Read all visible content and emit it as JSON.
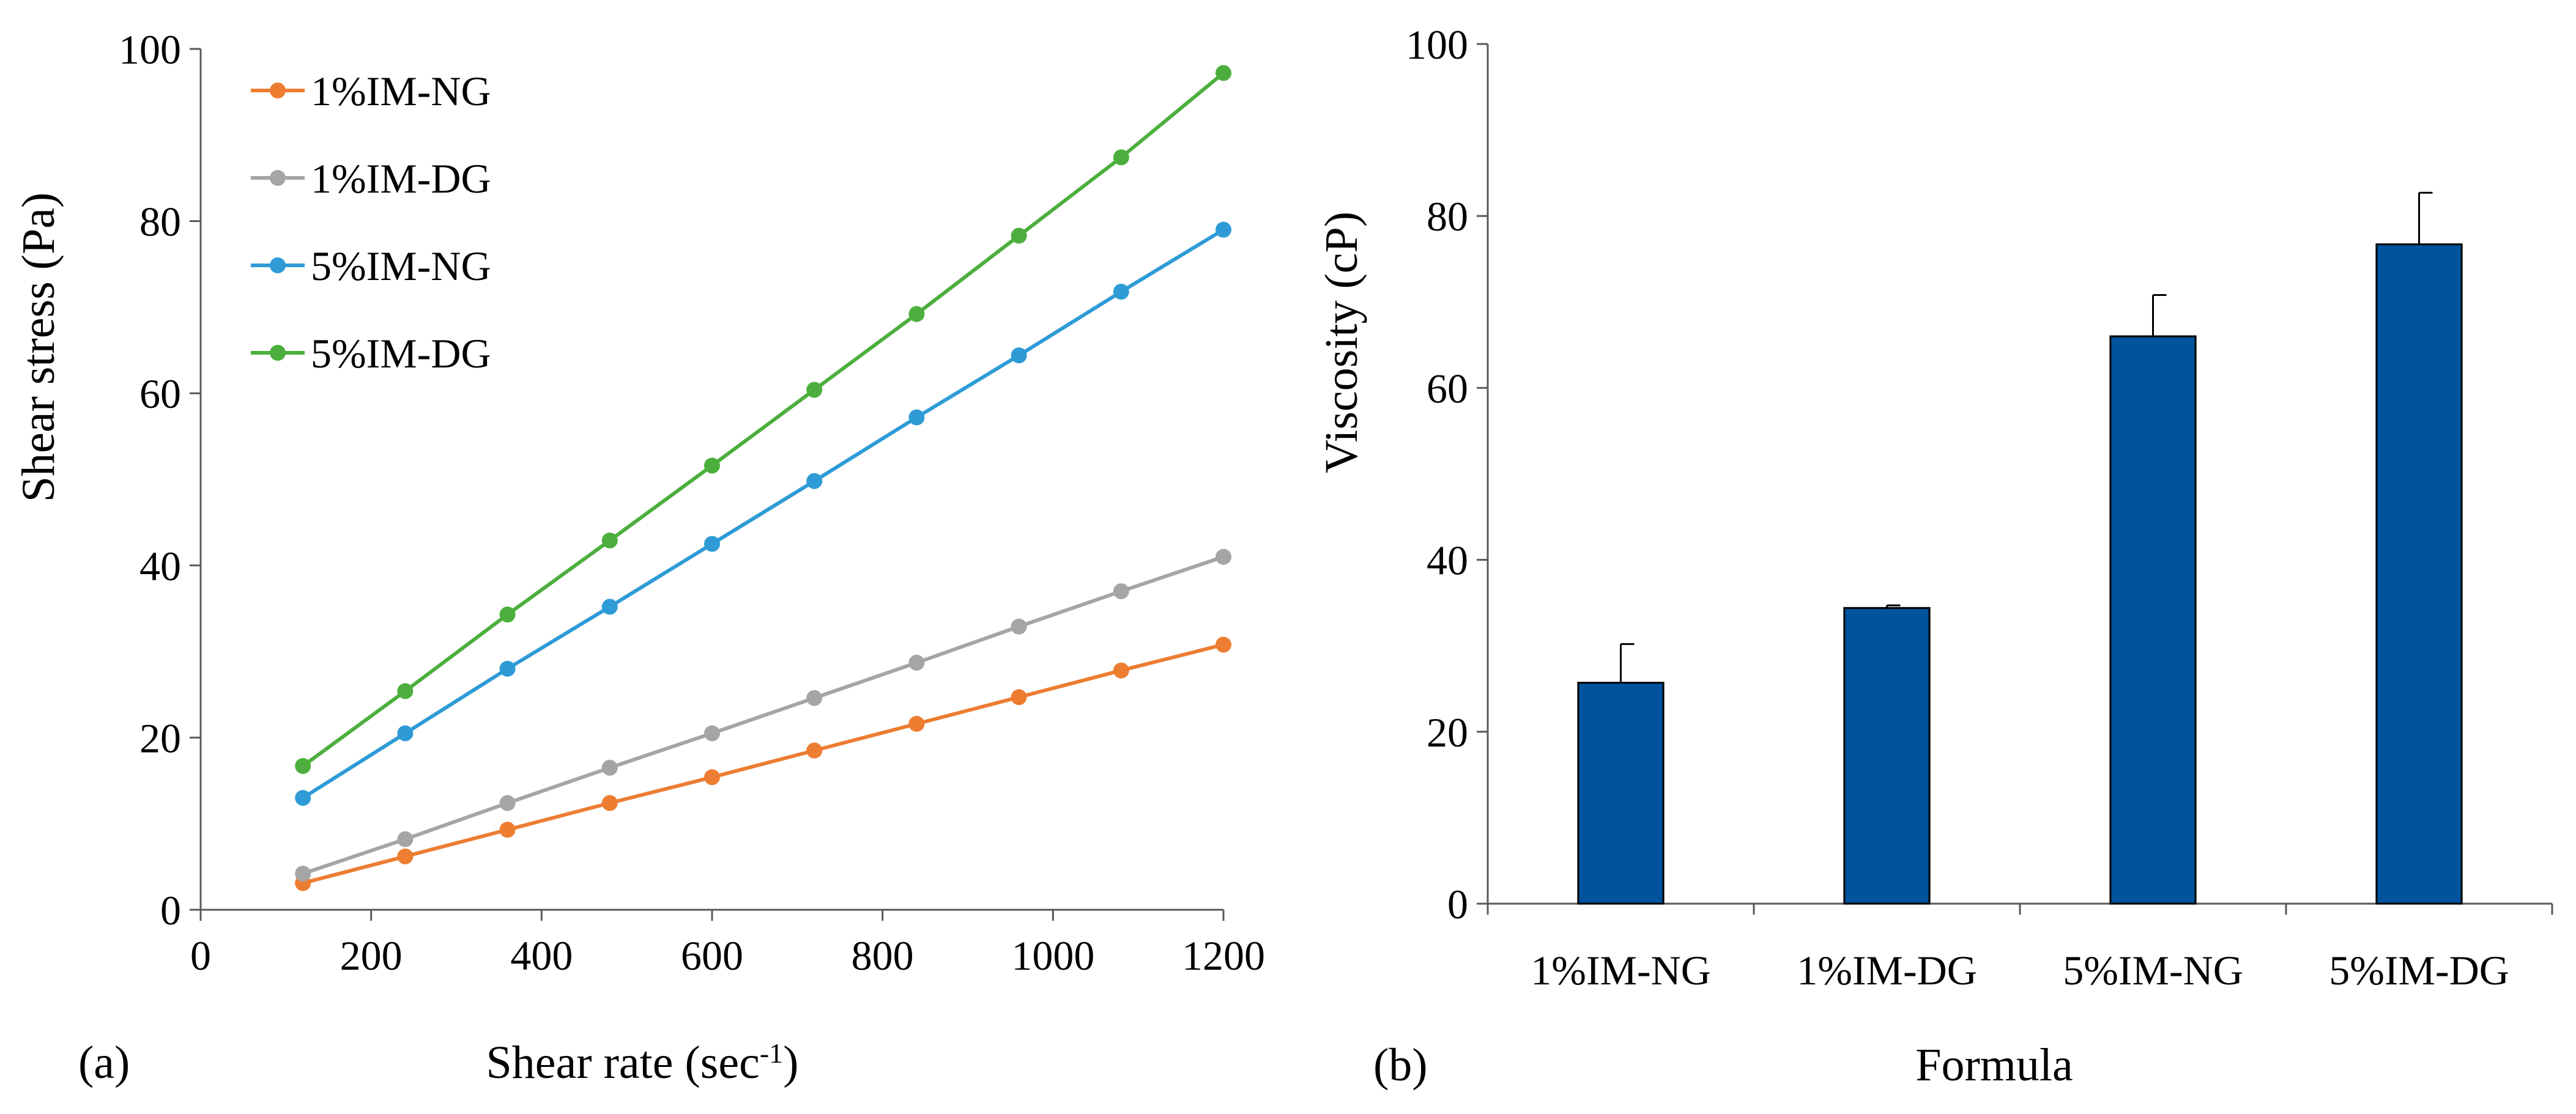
{
  "chart_data": [
    {
      "type": "line",
      "panel_label": "(a)",
      "xlabel": "Shear rate (sec",
      "xlabel_superscript": "-1",
      "xlabel_suffix": ")",
      "ylabel": "Shear stress (Pa)",
      "xlim": [
        0,
        1200
      ],
      "ylim": [
        0,
        100
      ],
      "x_ticks": [
        0,
        200,
        400,
        600,
        800,
        1000,
        1200
      ],
      "y_ticks": [
        0,
        20,
        40,
        60,
        80,
        100
      ],
      "grid": false,
      "legend_position": "top-left",
      "x": [
        120,
        240,
        360,
        480,
        600,
        720,
        840,
        960,
        1080,
        1200
      ],
      "series": [
        {
          "name": "1%IM-NG",
          "color": "#ED7D31",
          "values": [
            3.1,
            6.2,
            9.3,
            12.4,
            15.4,
            18.5,
            21.6,
            24.7,
            27.8,
            30.8
          ]
        },
        {
          "name": "1%IM-DG",
          "color": "#A5A5A5",
          "values": [
            4.2,
            8.2,
            12.4,
            16.5,
            20.5,
            24.6,
            28.7,
            32.9,
            37.0,
            41.0
          ]
        },
        {
          "name": "5%IM-NG",
          "color": "#2E9BD6",
          "values": [
            13.0,
            20.5,
            28.0,
            35.2,
            42.5,
            49.8,
            57.2,
            64.4,
            71.8,
            79.0
          ]
        },
        {
          "name": "5%IM-DG",
          "color": "#4CAF3D",
          "values": [
            16.7,
            25.4,
            34.3,
            42.9,
            51.6,
            60.4,
            69.2,
            78.3,
            87.4,
            97.2
          ]
        }
      ]
    },
    {
      "type": "bar",
      "panel_label": "(b)",
      "xlabel": "Formula",
      "ylabel": "Viscosity (cP)",
      "ylim": [
        0,
        100
      ],
      "y_ticks": [
        0,
        20,
        40,
        60,
        80,
        100
      ],
      "grid": false,
      "bar_color": "#00539C",
      "categories": [
        "1%IM-NG",
        "1%IM-DG",
        "5%IM-NG",
        "5%IM-DG"
      ],
      "values": [
        25.7,
        34.4,
        66.0,
        76.7
      ],
      "error_plus": [
        4.5,
        0.3,
        4.8,
        6.0
      ]
    }
  ]
}
